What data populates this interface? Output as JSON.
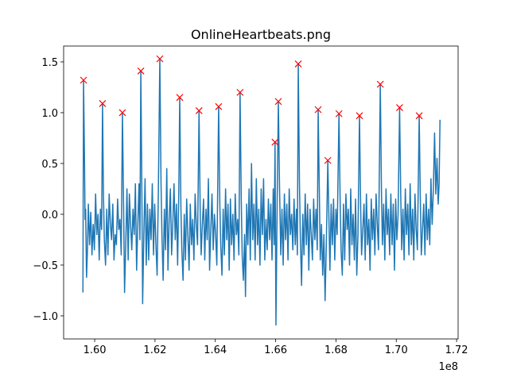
{
  "chart_data": {
    "type": "line",
    "title": "OnlineHeartbeats.png",
    "x_offset_label": "1e8",
    "x": [
      1.5961,
      1.5963,
      1.5966,
      1.5968,
      1.597,
      1.5973,
      1.5976,
      1.5979,
      1.5983,
      1.5987,
      1.5991,
      1.5995,
      1.5999,
      1.6003,
      1.6007,
      1.6011,
      1.6015,
      1.6019,
      1.6023,
      1.6026,
      1.6029,
      1.6032,
      1.6036,
      1.604,
      1.6044,
      1.6048,
      1.6052,
      1.6056,
      1.606,
      1.6064,
      1.6068,
      1.6072,
      1.6076,
      1.608,
      1.6084,
      1.6088,
      1.6092,
      1.6096,
      1.6099,
      1.6103,
      1.6107,
      1.6111,
      1.6115,
      1.6119,
      1.6123,
      1.6127,
      1.6131,
      1.6135,
      1.6139,
      1.6143,
      1.6147,
      1.615,
      1.6153,
      1.6156,
      1.6159,
      1.6163,
      1.6167,
      1.6171,
      1.6175,
      1.6179,
      1.6183,
      1.6187,
      1.6191,
      1.6195,
      1.6199,
      1.6203,
      1.6207,
      1.6211,
      1.6216,
      1.622,
      1.6223,
      1.6227,
      1.6231,
      1.6235,
      1.6239,
      1.6243,
      1.6247,
      1.6251,
      1.6255,
      1.6259,
      1.6263,
      1.6267,
      1.6271,
      1.6275,
      1.6279,
      1.6282,
      1.6286,
      1.6289,
      1.6293,
      1.6297,
      1.6301,
      1.6305,
      1.6309,
      1.6313,
      1.6317,
      1.6321,
      1.6325,
      1.6329,
      1.6333,
      1.6337,
      1.6341,
      1.6346,
      1.635,
      1.6353,
      1.6357,
      1.6361,
      1.6365,
      1.6369,
      1.6373,
      1.6377,
      1.6381,
      1.6385,
      1.6389,
      1.6393,
      1.6397,
      1.6401,
      1.6405,
      1.6411,
      1.6415,
      1.6418,
      1.6422,
      1.6426,
      1.643,
      1.6434,
      1.6438,
      1.6442,
      1.6446,
      1.645,
      1.6454,
      1.6458,
      1.6462,
      1.6466,
      1.647,
      1.6474,
      1.6478,
      1.6482,
      1.6486,
      1.6489,
      1.6493,
      1.6497,
      1.65,
      1.6504,
      1.6508,
      1.6512,
      1.6516,
      1.652,
      1.6524,
      1.6528,
      1.6532,
      1.6536,
      1.654,
      1.6544,
      1.6548,
      1.6552,
      1.6556,
      1.656,
      1.6564,
      1.6568,
      1.6572,
      1.6576,
      1.658,
      1.6584,
      1.6588,
      1.6592,
      1.6595,
      1.6598,
      1.6601,
      1.6605,
      1.6609,
      1.6613,
      1.6617,
      1.6621,
      1.6625,
      1.6629,
      1.6633,
      1.6637,
      1.6641,
      1.6645,
      1.6649,
      1.6653,
      1.6657,
      1.6661,
      1.6665,
      1.6669,
      1.6672,
      1.6675,
      1.6679,
      1.6682,
      1.6686,
      1.669,
      1.6694,
      1.6698,
      1.6702,
      1.6706,
      1.671,
      1.6714,
      1.6718,
      1.6722,
      1.6726,
      1.673,
      1.6734,
      1.6738,
      1.6741,
      1.6745,
      1.6748,
      1.6752,
      1.6756,
      1.676,
      1.6764,
      1.6768,
      1.6773,
      1.6777,
      1.678,
      1.6784,
      1.6788,
      1.6792,
      1.6796,
      1.68,
      1.6804,
      1.681,
      1.6814,
      1.6817,
      1.6821,
      1.6825,
      1.6829,
      1.6833,
      1.6837,
      1.6841,
      1.6845,
      1.6849,
      1.6853,
      1.6857,
      1.6861,
      1.6865,
      1.6869,
      1.6873,
      1.6878,
      1.6882,
      1.6885,
      1.6889,
      1.6893,
      1.6897,
      1.6901,
      1.6905,
      1.6909,
      1.6913,
      1.6917,
      1.6921,
      1.6925,
      1.6929,
      1.6933,
      1.6937,
      1.6941,
      1.6947,
      1.6951,
      1.6954,
      1.6958,
      1.6962,
      1.6966,
      1.697,
      1.6974,
      1.6978,
      1.6982,
      1.6986,
      1.699,
      1.6994,
      1.6998,
      1.7002,
      1.7006,
      1.7011,
      1.7015,
      1.7018,
      1.7022,
      1.7026,
      1.703,
      1.7034,
      1.7038,
      1.7042,
      1.7046,
      1.705,
      1.7054,
      1.7058,
      1.7062,
      1.7066,
      1.707,
      1.7076,
      1.708,
      1.7083,
      1.7087,
      1.7091,
      1.7095,
      1.7099,
      1.7103,
      1.7107,
      1.7111,
      1.7115,
      1.7119,
      1.7123,
      1.7127,
      1.7131,
      1.7135,
      1.7139,
      1.7142,
      1.7145
    ],
    "series": [
      {
        "color": "#1f77b4",
        "values": [
          -0.77,
          1.32,
          0.6,
          -0.05,
          0.05,
          -0.62,
          -0.35,
          0.1,
          -0.3,
          0.02,
          -0.4,
          -0.1,
          -0.35,
          0.2,
          -0.2,
          0.0,
          -0.45,
          0.05,
          -0.15,
          1.09,
          0.2,
          -0.25,
          -0.5,
          0.05,
          -0.4,
          0.2,
          -0.1,
          -0.25,
          0.1,
          -0.45,
          -0.2,
          -0.3,
          0.15,
          -0.15,
          -0.05,
          -0.4,
          1.0,
          0.05,
          -0.77,
          -0.3,
          0.25,
          -0.45,
          0.2,
          -0.1,
          -0.35,
          0.05,
          -0.2,
          0.3,
          -0.55,
          -0.1,
          0.3,
          -0.25,
          1.41,
          0.4,
          -0.88,
          -0.2,
          0.35,
          -0.5,
          0.1,
          -0.45,
          0.05,
          -0.25,
          0.3,
          -0.4,
          0.1,
          -0.3,
          -0.6,
          0.2,
          1.53,
          0.3,
          -0.2,
          -0.65,
          0.05,
          -0.35,
          0.45,
          -0.55,
          -0.05,
          0.25,
          -0.4,
          -0.1,
          0.3,
          -0.25,
          0.1,
          -0.5,
          0.25,
          1.15,
          0.05,
          -0.35,
          -0.65,
          0.0,
          -0.45,
          0.15,
          -0.2,
          -0.55,
          0.1,
          -0.3,
          -0.05,
          -0.45,
          0.2,
          -0.1,
          -0.3,
          1.02,
          0.0,
          -0.4,
          -0.1,
          0.15,
          -0.45,
          0.05,
          -0.25,
          0.35,
          -0.55,
          -0.15,
          0.2,
          -0.35,
          0.0,
          -0.2,
          -0.5,
          1.06,
          0.1,
          -0.3,
          -0.6,
          0.05,
          -0.4,
          0.25,
          -0.25,
          0.1,
          -0.55,
          0.15,
          -0.3,
          0.0,
          -0.45,
          0.2,
          -0.2,
          -0.05,
          -0.4,
          1.2,
          0.15,
          -0.4,
          -0.65,
          -0.2,
          -0.81,
          0.1,
          -0.3,
          0.25,
          -0.45,
          0.5,
          -0.25,
          0.1,
          -0.45,
          0.35,
          -0.3,
          0.05,
          -0.5,
          0.25,
          -0.2,
          0.35,
          -0.45,
          -0.05,
          -0.35,
          0.15,
          -0.25,
          0.1,
          -0.45,
          0.25,
          -0.3,
          0.71,
          -1.09,
          0.1,
          1.11,
          0.25,
          -0.4,
          0.05,
          -0.5,
          0.2,
          -0.25,
          0.1,
          -0.45,
          0.25,
          -0.2,
          0.0,
          -0.35,
          0.15,
          -0.3,
          0.05,
          -0.4,
          1.48,
          0.3,
          -0.25,
          -0.7,
          0.0,
          -0.4,
          0.2,
          -0.3,
          0.1,
          -0.55,
          0.05,
          -0.2,
          -0.45,
          0.15,
          -0.25,
          0.05,
          -0.35,
          1.03,
          0.2,
          -0.45,
          -0.1,
          -0.6,
          -0.2,
          -0.85,
          -0.3,
          0.53,
          -0.1,
          -0.55,
          0.1,
          -0.3,
          0.15,
          -0.45,
          0.05,
          -0.2,
          0.99,
          0.1,
          -0.35,
          -0.6,
          0.1,
          -0.45,
          0.2,
          -0.15,
          0.05,
          -0.5,
          0.25,
          -0.3,
          0.0,
          -0.45,
          0.15,
          -0.6,
          -0.2,
          0.97,
          0.05,
          -0.4,
          -0.15,
          0.1,
          -0.45,
          0.2,
          -0.3,
          -0.05,
          -0.55,
          0.15,
          -0.25,
          0.05,
          -0.4,
          0.2,
          -0.1,
          -0.35,
          1.28,
          0.2,
          -0.3,
          0.1,
          -0.45,
          0.25,
          -0.2,
          0.05,
          -0.4,
          0.2,
          -0.3,
          0.1,
          -0.55,
          0.15,
          -0.25,
          0.0,
          1.05,
          0.15,
          -0.35,
          0.05,
          -0.45,
          0.25,
          -0.2,
          0.1,
          -0.4,
          0.3,
          -0.3,
          0.05,
          -0.45,
          0.2,
          -0.15,
          -0.35,
          0.97,
          0.1,
          -0.4,
          -0.15,
          0.1,
          -0.4,
          0.2,
          -0.25,
          0.05,
          -0.3,
          0.35,
          -0.1,
          0.25,
          0.8,
          0.2,
          0.55,
          0.1,
          0.3,
          0.93
        ]
      }
    ],
    "peaks": {
      "color": "#ff0000",
      "marker": "x",
      "x": [
        1.5963,
        1.6026,
        1.6092,
        1.6153,
        1.6216,
        1.6282,
        1.6346,
        1.6411,
        1.6482,
        1.6598,
        1.6609,
        1.6675,
        1.6741,
        1.6773,
        1.681,
        1.6878,
        1.6947,
        1.7011,
        1.7076
      ],
      "values": [
        1.32,
        1.09,
        1.0,
        1.41,
        1.53,
        1.15,
        1.02,
        1.06,
        1.2,
        0.71,
        1.11,
        1.48,
        1.03,
        0.53,
        0.99,
        0.97,
        1.28,
        1.05,
        0.97
      ]
    },
    "xlim": [
      1.5897,
      1.7205
    ],
    "xticks": [
      {
        "value": 1.6,
        "label": "1.60"
      },
      {
        "value": 1.62,
        "label": "1.62"
      },
      {
        "value": 1.64,
        "label": "1.64"
      },
      {
        "value": 1.66,
        "label": "1.66"
      },
      {
        "value": 1.68,
        "label": "1.68"
      },
      {
        "value": 1.7,
        "label": "1.70"
      },
      {
        "value": 1.72,
        "label": "1.72"
      }
    ],
    "ylim": [
      -1.227,
      1.656
    ],
    "yticks": [
      {
        "value": -1.0,
        "label": "−1.0"
      },
      {
        "value": -0.5,
        "label": "−0.5"
      },
      {
        "value": 0,
        "label": "0.0"
      },
      {
        "value": 0.5,
        "label": "0.5"
      },
      {
        "value": 1.0,
        "label": "1.0"
      },
      {
        "value": 1.5,
        "label": "1.5"
      }
    ],
    "grid": false
  }
}
